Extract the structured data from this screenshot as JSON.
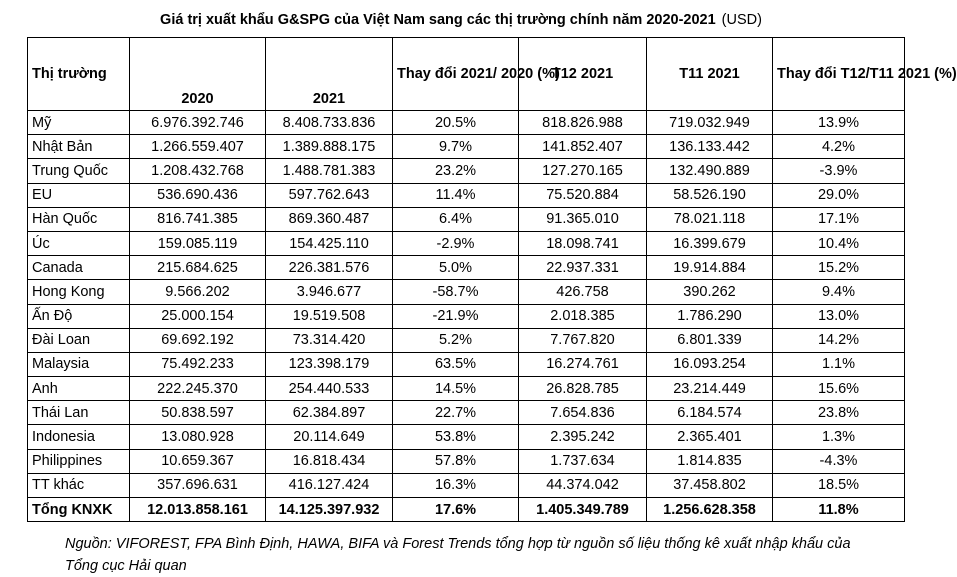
{
  "title": {
    "main": "Giá trị xuất khẩu G&SPG của Việt Nam sang các thị trường chính năm 2020-2021",
    "unit": "(USD)"
  },
  "headers": {
    "market": "Thị trường",
    "y2020": "2020",
    "y2021": "2021",
    "change_yoy": "Thay đổi 2021/ 2020 (%)",
    "t12": "T12 2021",
    "t11": "T11 2021",
    "change_mom": "Thay đổi T12/T11 2021 (%)"
  },
  "rows": [
    {
      "market": "Mỹ",
      "y2020": "6.976.392.746",
      "y2021": "8.408.733.836",
      "change_yoy": "20.5%",
      "t12": "818.826.988",
      "t11": "719.032.949",
      "change_mom": "13.9%"
    },
    {
      "market": "Nhật Bản",
      "y2020": "1.266.559.407",
      "y2021": "1.389.888.175",
      "change_yoy": "9.7%",
      "t12": "141.852.407",
      "t11": "136.133.442",
      "change_mom": "4.2%"
    },
    {
      "market": "Trung Quốc",
      "y2020": "1.208.432.768",
      "y2021": "1.488.781.383",
      "change_yoy": "23.2%",
      "t12": "127.270.165",
      "t11": "132.490.889",
      "change_mom": "-3.9%"
    },
    {
      "market": "EU",
      "y2020": "536.690.436",
      "y2021": "597.762.643",
      "change_yoy": "11.4%",
      "t12": "75.520.884",
      "t11": "58.526.190",
      "change_mom": "29.0%"
    },
    {
      "market": "Hàn Quốc",
      "y2020": "816.741.385",
      "y2021": "869.360.487",
      "change_yoy": "6.4%",
      "t12": "91.365.010",
      "t11": "78.021.118",
      "change_mom": "17.1%"
    },
    {
      "market": "Úc",
      "y2020": "159.085.119",
      "y2021": "154.425.110",
      "change_yoy": "-2.9%",
      "t12": "18.098.741",
      "t11": "16.399.679",
      "change_mom": "10.4%"
    },
    {
      "market": "Canada",
      "y2020": "215.684.625",
      "y2021": "226.381.576",
      "change_yoy": "5.0%",
      "t12": "22.937.331",
      "t11": "19.914.884",
      "change_mom": "15.2%"
    },
    {
      "market": "Hong Kong",
      "y2020": "9.566.202",
      "y2021": "3.946.677",
      "change_yoy": "-58.7%",
      "t12": "426.758",
      "t11": "390.262",
      "change_mom": "9.4%"
    },
    {
      "market": "Ấn Độ",
      "y2020": "25.000.154",
      "y2021": "19.519.508",
      "change_yoy": "-21.9%",
      "t12": "2.018.385",
      "t11": "1.786.290",
      "change_mom": "13.0%"
    },
    {
      "market": "Đài Loan",
      "y2020": "69.692.192",
      "y2021": "73.314.420",
      "change_yoy": "5.2%",
      "t12": "7.767.820",
      "t11": "6.801.339",
      "change_mom": "14.2%"
    },
    {
      "market": "Malaysia",
      "y2020": "75.492.233",
      "y2021": "123.398.179",
      "change_yoy": "63.5%",
      "t12": "16.274.761",
      "t11": "16.093.254",
      "change_mom": "1.1%"
    },
    {
      "market": "Anh",
      "y2020": "222.245.370",
      "y2021": "254.440.533",
      "change_yoy": "14.5%",
      "t12": "26.828.785",
      "t11": "23.214.449",
      "change_mom": "15.6%"
    },
    {
      "market": "Thái Lan",
      "y2020": "50.838.597",
      "y2021": "62.384.897",
      "change_yoy": "22.7%",
      "t12": "7.654.836",
      "t11": "6.184.574",
      "change_mom": "23.8%"
    },
    {
      "market": "Indonesia",
      "y2020": "13.080.928",
      "y2021": "20.114.649",
      "change_yoy": "53.8%",
      "t12": "2.395.242",
      "t11": "2.365.401",
      "change_mom": "1.3%"
    },
    {
      "market": "Philippines",
      "y2020": "10.659.367",
      "y2021": "16.818.434",
      "change_yoy": "57.8%",
      "t12": "1.737.634",
      "t11": "1.814.835",
      "change_mom": "-4.3%"
    },
    {
      "market": "TT khác",
      "y2020": "357.696.631",
      "y2021": "416.127.424",
      "change_yoy": "16.3%",
      "t12": "44.374.042",
      "t11": "37.458.802",
      "change_mom": "18.5%"
    }
  ],
  "total": {
    "market": "Tổng KNXK",
    "y2020": "12.013.858.161",
    "y2021": "14.125.397.932",
    "change_yoy": "17.6%",
    "t12": "1.405.349.789",
    "t11": "1.256.628.358",
    "change_mom": "11.8%"
  },
  "source": "Nguồn: VIFOREST, FPA Bình Định, HAWA, BIFA và Forest Trends tổng hợp từ nguồn số liệu thống kê xuất nhập khẩu của Tổng cục Hải quan"
}
